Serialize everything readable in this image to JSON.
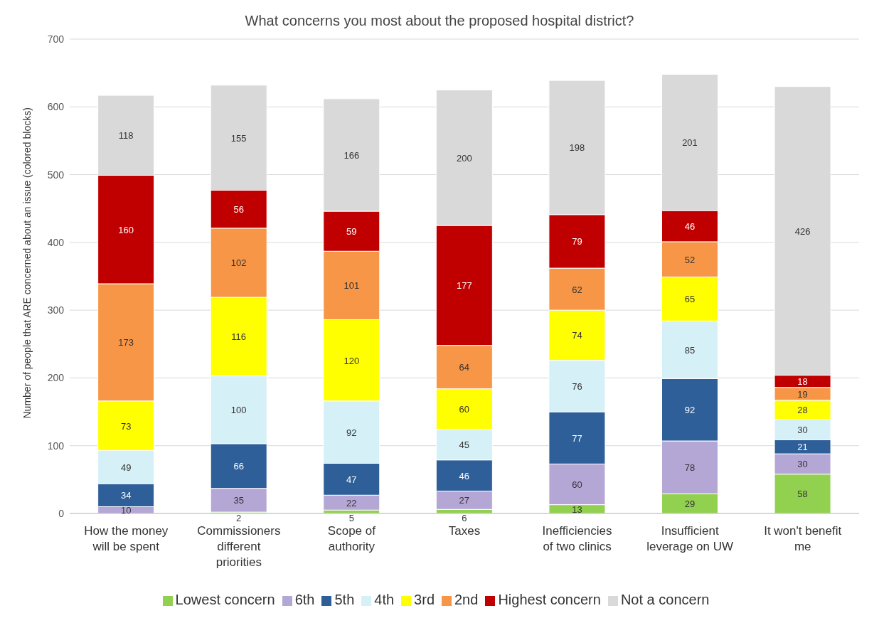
{
  "chart_data": {
    "type": "bar",
    "stacked": true,
    "title": "What concerns you most about the proposed hospital district?",
    "ylabel": "Number of people that ARE concerned about an issue (colored blocks)",
    "categories": [
      "How the money will be spent",
      "Commissioners different priorities",
      "Scope of authority",
      "Taxes",
      "Inefficiencies of two clinics",
      "Insufficient leverage on UW",
      "It won't benefit me"
    ],
    "ylim": [
      0,
      700
    ],
    "yticks": [
      0,
      100,
      200,
      300,
      400,
      500,
      600,
      700
    ],
    "grid": "y",
    "legend": "bottom",
    "data_labels": true,
    "series": [
      {
        "name": "Lowest concern",
        "color": "#92d050",
        "values": [
          null,
          2,
          5,
          6,
          13,
          29,
          58
        ]
      },
      {
        "name": "6th",
        "color": "#b4a7d6",
        "values": [
          10,
          35,
          22,
          27,
          60,
          78,
          30
        ]
      },
      {
        "name": "5th",
        "color": "#2e5f99",
        "values": [
          34,
          66,
          47,
          46,
          77,
          92,
          21
        ]
      },
      {
        "name": "4th",
        "color": "#d6f0f8",
        "values": [
          49,
          100,
          92,
          45,
          76,
          85,
          30
        ]
      },
      {
        "name": "3rd",
        "color": "#ffff00",
        "values": [
          73,
          116,
          120,
          60,
          74,
          65,
          28
        ]
      },
      {
        "name": "2nd",
        "color": "#f79646",
        "values": [
          173,
          102,
          101,
          64,
          62,
          52,
          19
        ]
      },
      {
        "name": "Highest concern",
        "color": "#c00000",
        "values": [
          160,
          56,
          59,
          177,
          79,
          46,
          18
        ]
      },
      {
        "name": "Not a concern",
        "color": "#d9d9d9",
        "values": [
          118,
          155,
          166,
          200,
          198,
          201,
          426
        ]
      }
    ]
  }
}
